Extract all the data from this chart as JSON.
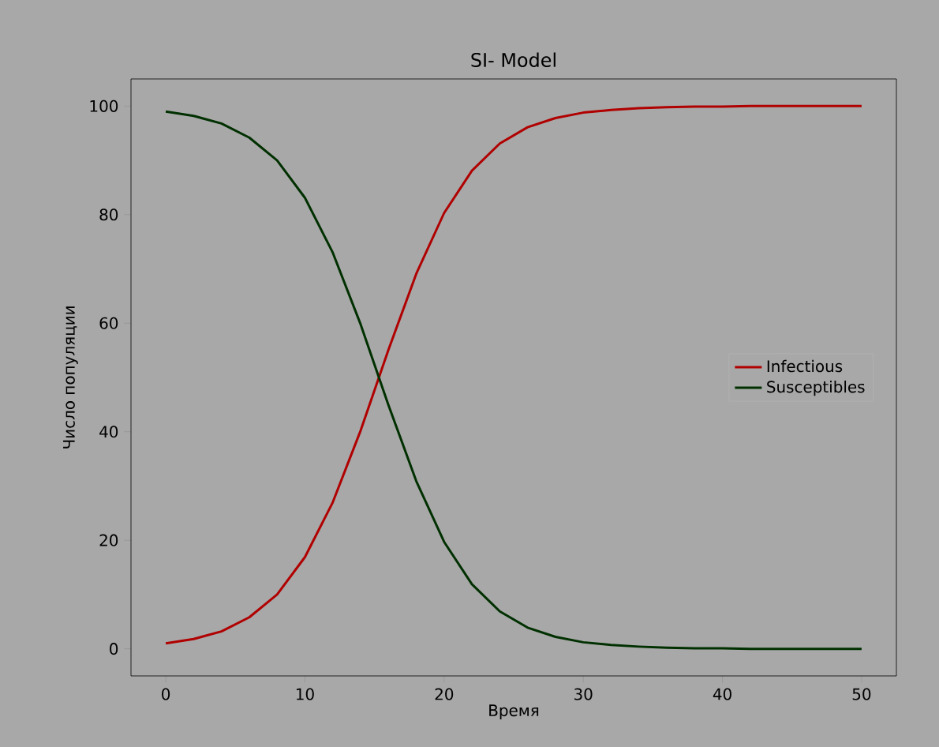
{
  "chart_data": {
    "type": "line",
    "title": "SI- Model",
    "xlabel": "Время",
    "ylabel": "Число популяции",
    "x": [
      0,
      2,
      4,
      6,
      8,
      10,
      12,
      14,
      16,
      18,
      20,
      22,
      24,
      26,
      28,
      30,
      32,
      34,
      36,
      38,
      40,
      42,
      44,
      46,
      48,
      50
    ],
    "series": [
      {
        "name": "Infectious",
        "color": "#b00000",
        "values": [
          1.0,
          1.8,
          3.2,
          5.8,
          10.0,
          16.9,
          27.0,
          40.2,
          55.1,
          69.1,
          80.3,
          88.1,
          93.1,
          96.1,
          97.8,
          98.8,
          99.3,
          99.6,
          99.8,
          99.9,
          99.9,
          100.0,
          100.0,
          100.0,
          100.0,
          100.0
        ]
      },
      {
        "name": "Susceptibles",
        "color": "#003000",
        "values": [
          99.0,
          98.2,
          96.8,
          94.2,
          90.0,
          83.1,
          73.0,
          59.8,
          44.9,
          30.9,
          19.7,
          11.9,
          6.9,
          3.9,
          2.2,
          1.2,
          0.7,
          0.4,
          0.2,
          0.1,
          0.1,
          0.0,
          0.0,
          0.0,
          0.0,
          0.0
        ]
      }
    ],
    "xlim": [
      -2.5,
      52.5
    ],
    "ylim": [
      -5,
      105
    ],
    "xticks": [
      0,
      10,
      20,
      30,
      40,
      50
    ],
    "yticks": [
      0,
      20,
      40,
      60,
      80,
      100
    ],
    "legend": "right"
  }
}
